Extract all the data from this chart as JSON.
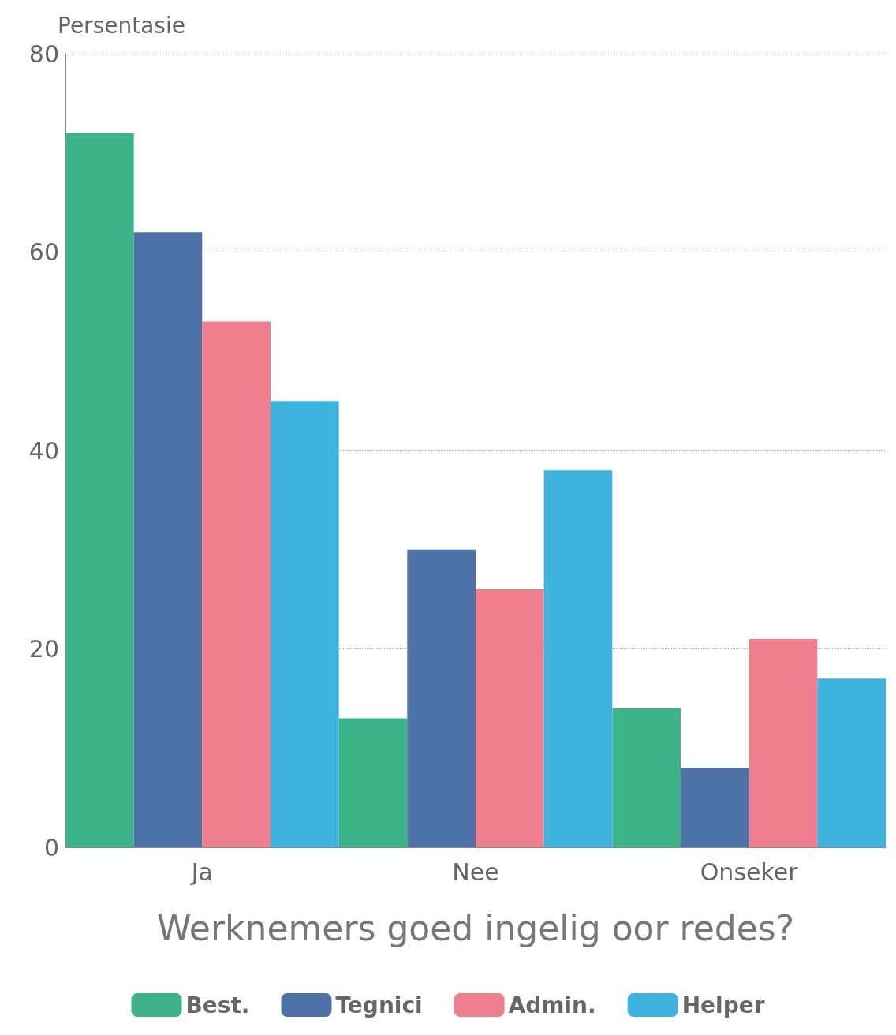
{
  "chart_data": {
    "type": "bar",
    "ylabel": "Persentasie",
    "xlabel": "Werknemers goed ingelig oor redes?",
    "categories": [
      "Ja",
      "Nee",
      "Onseker"
    ],
    "series": [
      {
        "name": "Best.",
        "color": "#3db38a",
        "values": [
          72,
          13,
          14
        ]
      },
      {
        "name": "Tegnici",
        "color": "#4d72a8",
        "values": [
          62,
          30,
          8
        ]
      },
      {
        "name": "Admin.",
        "color": "#ef7f8e",
        "values": [
          53,
          26,
          21
        ]
      },
      {
        "name": "Helper",
        "color": "#3db3dd",
        "values": [
          45,
          38,
          17
        ]
      }
    ],
    "ylim": [
      0,
      80
    ],
    "yticks": [
      0,
      20,
      40,
      60,
      80
    ],
    "grid": "y",
    "legend": "bottom"
  }
}
